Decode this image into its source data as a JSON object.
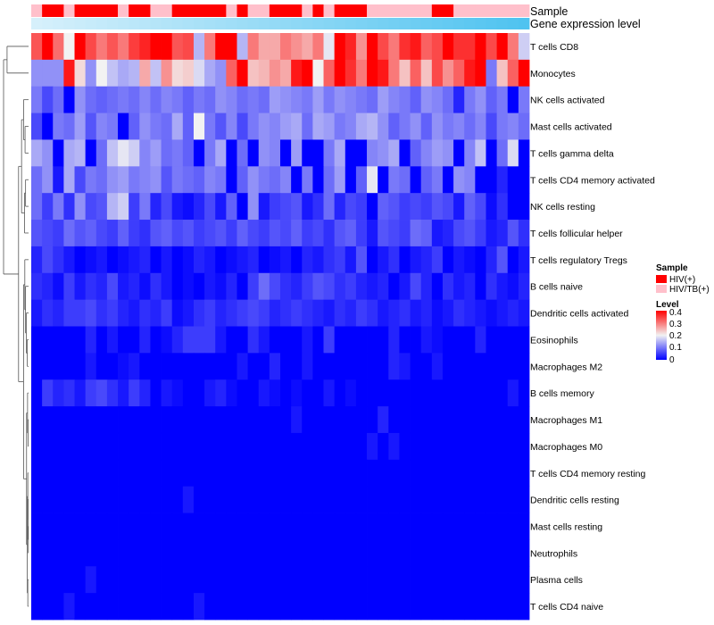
{
  "chart_data": {
    "type": "heatmap",
    "rows": [
      "T cells CD8",
      "Monocytes",
      "NK cells activated",
      "Mast cells activated",
      "T cells gamma delta",
      "T cells CD4 memory activated",
      "NK cells resting",
      "T cells follicular helper",
      "T cells regulatory  Tregs",
      "B cells naive",
      "Dendritic cells activated",
      "Eosinophils",
      "Macrophages M2",
      "B cells memory",
      "Macrophages M1",
      "Macrophages M0",
      "T cells CD4 memory resting",
      "Dendritic cells resting",
      "Mast cells resting",
      "Neutrophils",
      "Plasma cells",
      "T cells CD4 naive"
    ],
    "n_columns": 46,
    "sample_annotation": {
      "label": "Sample",
      "columns": [
        "HIV/TB(+)",
        "HIV(+)",
        "HIV(+)",
        "HIV/TB(+)",
        "HIV(+)",
        "HIV(+)",
        "HIV(+)",
        "HIV(+)",
        "HIV/TB(+)",
        "HIV(+)",
        "HIV(+)",
        "HIV/TB(+)",
        "HIV/TB(+)",
        "HIV(+)",
        "HIV(+)",
        "HIV(+)",
        "HIV(+)",
        "HIV(+)",
        "HIV/TB(+)",
        "HIV(+)",
        "HIV/TB(+)",
        "HIV/TB(+)",
        "HIV(+)",
        "HIV(+)",
        "HIV(+)",
        "HIV/TB(+)",
        "HIV(+)",
        "HIV/TB(+)",
        "HIV(+)",
        "HIV(+)",
        "HIV(+)",
        "HIV/TB(+)",
        "HIV/TB(+)",
        "HIV/TB(+)",
        "HIV/TB(+)",
        "HIV/TB(+)",
        "HIV/TB(+)",
        "HIV(+)",
        "HIV(+)",
        "HIV/TB(+)",
        "HIV/TB(+)",
        "HIV/TB(+)",
        "HIV/TB(+)",
        "HIV/TB(+)",
        "HIV/TB(+)",
        "HIV/TB(+)"
      ]
    },
    "gene_expression_annotation": {
      "label": "Gene expression level"
    },
    "values": [
      [
        0.33,
        0.4,
        0.31,
        0.2,
        0.4,
        0.34,
        0.3,
        0.33,
        0.3,
        0.35,
        0.37,
        0.4,
        0.4,
        0.33,
        0.34,
        0.15,
        0.3,
        0.4,
        0.4,
        0.15,
        0.3,
        0.26,
        0.26,
        0.3,
        0.28,
        0.26,
        0.3,
        0.19,
        0.4,
        0.37,
        0.28,
        0.4,
        0.34,
        0.3,
        0.36,
        0.38,
        0.32,
        0.34,
        0.4,
        0.36,
        0.36,
        0.4,
        0.34,
        0.4,
        0.3,
        0.17
      ],
      [
        0.12,
        0.12,
        0.12,
        0.38,
        0.22,
        0.12,
        0.2,
        0.16,
        0.14,
        0.15,
        0.26,
        0.16,
        0.28,
        0.22,
        0.23,
        0.18,
        0.14,
        0.12,
        0.32,
        0.4,
        0.24,
        0.25,
        0.28,
        0.26,
        0.38,
        0.4,
        0.2,
        0.32,
        0.4,
        0.36,
        0.3,
        0.4,
        0.38,
        0.3,
        0.24,
        0.32,
        0.24,
        0.34,
        0.28,
        0.32,
        0.38,
        0.4,
        0.1,
        0.24,
        0.32,
        0.4
      ],
      [
        0.1,
        0.06,
        0.09,
        0.0,
        0.12,
        0.09,
        0.08,
        0.09,
        0.1,
        0.09,
        0.11,
        0.09,
        0.11,
        0.1,
        0.08,
        0.1,
        0.09,
        0.12,
        0.11,
        0.09,
        0.1,
        0.09,
        0.13,
        0.12,
        0.11,
        0.1,
        0.13,
        0.1,
        0.12,
        0.11,
        0.1,
        0.09,
        0.13,
        0.11,
        0.1,
        0.08,
        0.12,
        0.11,
        0.09,
        0.03,
        0.1,
        0.12,
        0.08,
        0.1,
        0.0,
        0.1
      ],
      [
        0.06,
        0.0,
        0.1,
        0.09,
        0.13,
        0.07,
        0.11,
        0.1,
        0.0,
        0.08,
        0.12,
        0.1,
        0.09,
        0.14,
        0.08,
        0.2,
        0.1,
        0.07,
        0.11,
        0.06,
        0.1,
        0.12,
        0.11,
        0.13,
        0.14,
        0.09,
        0.14,
        0.13,
        0.1,
        0.11,
        0.14,
        0.15,
        0.12,
        0.08,
        0.1,
        0.12,
        0.08,
        0.12,
        0.1,
        0.11,
        0.09,
        0.11,
        0.06,
        0.1,
        0.11,
        0.09
      ],
      [
        0.14,
        0.12,
        0.0,
        0.14,
        0.15,
        0.0,
        0.09,
        0.16,
        0.19,
        0.17,
        0.11,
        0.13,
        0.09,
        0.1,
        0.08,
        0.0,
        0.1,
        0.14,
        0.0,
        0.09,
        0.0,
        0.12,
        0.11,
        0.0,
        0.13,
        0.0,
        0.0,
        0.1,
        0.14,
        0.0,
        0.0,
        0.11,
        0.12,
        0.14,
        0.0,
        0.08,
        0.11,
        0.13,
        0.12,
        0.0,
        0.11,
        0.16,
        0.0,
        0.09,
        0.18,
        0.0
      ],
      [
        0.09,
        0.12,
        0.02,
        0.14,
        0.06,
        0.1,
        0.09,
        0.12,
        0.13,
        0.1,
        0.11,
        0.12,
        0.07,
        0.1,
        0.09,
        0.08,
        0.11,
        0.1,
        0.0,
        0.08,
        0.12,
        0.1,
        0.09,
        0.11,
        0.0,
        0.1,
        0.0,
        0.09,
        0.13,
        0.0,
        0.08,
        0.19,
        0.0,
        0.1,
        0.09,
        0.0,
        0.08,
        0.1,
        0.0,
        0.12,
        0.11,
        0.0,
        0.0,
        0.03,
        0.0,
        0.0
      ],
      [
        0.09,
        0.05,
        0.1,
        0.04,
        0.12,
        0.06,
        0.07,
        0.15,
        0.17,
        0.05,
        0.1,
        0.03,
        0.06,
        0.02,
        0.01,
        0.03,
        0.06,
        0.02,
        0.08,
        0.0,
        0.12,
        0.02,
        0.05,
        0.06,
        0.07,
        0.02,
        0.04,
        0.09,
        0.03,
        0.06,
        0.05,
        0.0,
        0.08,
        0.07,
        0.05,
        0.06,
        0.05,
        0.07,
        0.06,
        0.02,
        0.08,
        0.06,
        0.01,
        0.04,
        0.0,
        0.0
      ],
      [
        0.07,
        0.06,
        0.05,
        0.09,
        0.07,
        0.08,
        0.06,
        0.05,
        0.08,
        0.05,
        0.04,
        0.07,
        0.08,
        0.06,
        0.07,
        0.05,
        0.06,
        0.07,
        0.05,
        0.08,
        0.06,
        0.05,
        0.07,
        0.06,
        0.08,
        0.05,
        0.06,
        0.04,
        0.07,
        0.08,
        0.05,
        0.02,
        0.07,
        0.06,
        0.05,
        0.09,
        0.08,
        0.02,
        0.03,
        0.06,
        0.07,
        0.05,
        0.02,
        0.03,
        0.07,
        0.04
      ],
      [
        0.03,
        0.06,
        0.04,
        0.02,
        0.0,
        0.01,
        0.02,
        0.0,
        0.01,
        0.02,
        0.03,
        0.0,
        0.02,
        0.0,
        0.01,
        0.03,
        0.02,
        0.0,
        0.01,
        0.02,
        0.03,
        0.0,
        0.01,
        0.02,
        0.0,
        0.03,
        0.02,
        0.04,
        0.05,
        0.02,
        0.07,
        0.0,
        0.02,
        0.04,
        0.0,
        0.02,
        0.03,
        0.05,
        0.0,
        0.02,
        0.01,
        0.0,
        0.03,
        0.07,
        0.0,
        0.02
      ],
      [
        0.04,
        0.03,
        0.01,
        0.05,
        0.02,
        0.04,
        0.03,
        0.06,
        0.02,
        0.03,
        0.01,
        0.04,
        0.02,
        0.0,
        0.01,
        0.0,
        0.02,
        0.01,
        0.03,
        0.0,
        0.05,
        0.09,
        0.06,
        0.04,
        0.03,
        0.05,
        0.07,
        0.06,
        0.04,
        0.05,
        0.03,
        0.02,
        0.03,
        0.0,
        0.02,
        0.06,
        0.03,
        0.0,
        0.04,
        0.02,
        0.03,
        0.0,
        0.04,
        0.02,
        0.01,
        0.03
      ],
      [
        0.02,
        0.04,
        0.03,
        0.05,
        0.05,
        0.06,
        0.04,
        0.05,
        0.03,
        0.02,
        0.04,
        0.03,
        0.05,
        0.01,
        0.02,
        0.04,
        0.05,
        0.03,
        0.04,
        0.05,
        0.06,
        0.05,
        0.03,
        0.04,
        0.05,
        0.04,
        0.03,
        0.02,
        0.04,
        0.03,
        0.05,
        0.04,
        0.02,
        0.03,
        0.04,
        0.02,
        0.03,
        0.01,
        0.02,
        0.04,
        0.03,
        0.02,
        0.01,
        0.02,
        0.03,
        0.02
      ],
      [
        0.0,
        0.0,
        0.0,
        0.0,
        0.0,
        0.03,
        0.0,
        0.02,
        0.0,
        0.0,
        0.03,
        0.0,
        0.01,
        0.03,
        0.05,
        0.05,
        0.05,
        0.02,
        0.0,
        0.0,
        0.04,
        0.02,
        0.0,
        0.0,
        0.0,
        0.02,
        0.0,
        0.05,
        0.0,
        0.0,
        0.0,
        0.0,
        0.0,
        0.03,
        0.0,
        0.0,
        0.02,
        0.01,
        0.0,
        0.0,
        0.0,
        0.03,
        0.0,
        0.0,
        0.0,
        0.0
      ],
      [
        0.0,
        0.0,
        0.0,
        0.0,
        0.0,
        0.02,
        0.0,
        0.0,
        0.01,
        0.02,
        0.0,
        0.0,
        0.0,
        0.0,
        0.0,
        0.0,
        0.0,
        0.0,
        0.0,
        0.02,
        0.0,
        0.0,
        0.03,
        0.0,
        0.0,
        0.02,
        0.0,
        0.0,
        0.0,
        0.0,
        0.0,
        0.0,
        0.0,
        0.03,
        0.02,
        0.0,
        0.0,
        0.02,
        0.0,
        0.0,
        0.0,
        0.0,
        0.0,
        0.0,
        0.0,
        0.0
      ],
      [
        0.0,
        0.05,
        0.03,
        0.04,
        0.02,
        0.05,
        0.06,
        0.04,
        0.02,
        0.05,
        0.03,
        0.0,
        0.02,
        0.01,
        0.0,
        0.0,
        0.02,
        0.03,
        0.01,
        0.0,
        0.0,
        0.02,
        0.01,
        0.0,
        0.01,
        0.0,
        0.0,
        0.02,
        0.0,
        0.01,
        0.0,
        0.0,
        0.0,
        0.0,
        0.0,
        0.0,
        0.0,
        0.0,
        0.0,
        0.0,
        0.0,
        0.0,
        0.0,
        0.0,
        0.02,
        0.0
      ],
      [
        0.0,
        0.0,
        0.0,
        0.0,
        0.0,
        0.0,
        0.0,
        0.0,
        0.0,
        0.0,
        0.0,
        0.0,
        0.0,
        0.0,
        0.0,
        0.0,
        0.0,
        0.0,
        0.0,
        0.0,
        0.0,
        0.0,
        0.0,
        0.0,
        0.02,
        0.0,
        0.0,
        0.0,
        0.0,
        0.0,
        0.0,
        0.0,
        0.03,
        0.0,
        0.0,
        0.0,
        0.0,
        0.0,
        0.0,
        0.0,
        0.0,
        0.0,
        0.0,
        0.0,
        0.0,
        0.0
      ],
      [
        0.0,
        0.0,
        0.0,
        0.0,
        0.0,
        0.0,
        0.0,
        0.0,
        0.0,
        0.0,
        0.0,
        0.0,
        0.0,
        0.0,
        0.0,
        0.0,
        0.0,
        0.0,
        0.0,
        0.0,
        0.0,
        0.0,
        0.0,
        0.0,
        0.0,
        0.0,
        0.0,
        0.0,
        0.0,
        0.0,
        0.0,
        0.02,
        0.0,
        0.02,
        0.0,
        0.0,
        0.0,
        0.0,
        0.0,
        0.0,
        0.0,
        0.0,
        0.0,
        0.0,
        0.0,
        0.0
      ],
      [
        0.0,
        0.0,
        0.0,
        0.0,
        0.0,
        0.0,
        0.0,
        0.0,
        0.0,
        0.0,
        0.0,
        0.0,
        0.0,
        0.0,
        0.0,
        0.0,
        0.0,
        0.0,
        0.0,
        0.0,
        0.0,
        0.0,
        0.0,
        0.0,
        0.0,
        0.0,
        0.0,
        0.0,
        0.0,
        0.0,
        0.0,
        0.0,
        0.0,
        0.0,
        0.0,
        0.0,
        0.0,
        0.0,
        0.0,
        0.0,
        0.0,
        0.0,
        0.0,
        0.0,
        0.0,
        0.0
      ],
      [
        0.0,
        0.0,
        0.0,
        0.0,
        0.0,
        0.0,
        0.0,
        0.0,
        0.0,
        0.0,
        0.0,
        0.0,
        0.0,
        0.0,
        0.02,
        0.0,
        0.0,
        0.0,
        0.0,
        0.0,
        0.0,
        0.0,
        0.0,
        0.0,
        0.0,
        0.0,
        0.0,
        0.0,
        0.0,
        0.0,
        0.0,
        0.0,
        0.0,
        0.0,
        0.0,
        0.0,
        0.0,
        0.0,
        0.0,
        0.0,
        0.0,
        0.0,
        0.0,
        0.0,
        0.0,
        0.0
      ],
      [
        0.0,
        0.0,
        0.0,
        0.0,
        0.0,
        0.0,
        0.0,
        0.0,
        0.0,
        0.0,
        0.0,
        0.0,
        0.0,
        0.0,
        0.0,
        0.0,
        0.0,
        0.0,
        0.0,
        0.0,
        0.0,
        0.0,
        0.0,
        0.0,
        0.0,
        0.0,
        0.0,
        0.0,
        0.0,
        0.0,
        0.0,
        0.0,
        0.0,
        0.0,
        0.0,
        0.0,
        0.0,
        0.0,
        0.0,
        0.0,
        0.0,
        0.0,
        0.0,
        0.0,
        0.0,
        0.0
      ],
      [
        0.0,
        0.0,
        0.0,
        0.0,
        0.0,
        0.0,
        0.0,
        0.0,
        0.0,
        0.0,
        0.0,
        0.0,
        0.0,
        0.0,
        0.0,
        0.0,
        0.0,
        0.0,
        0.0,
        0.0,
        0.0,
        0.0,
        0.0,
        0.0,
        0.0,
        0.0,
        0.0,
        0.0,
        0.0,
        0.0,
        0.0,
        0.0,
        0.0,
        0.0,
        0.0,
        0.0,
        0.0,
        0.0,
        0.0,
        0.0,
        0.0,
        0.0,
        0.0,
        0.0,
        0.0,
        0.0
      ],
      [
        0.0,
        0.0,
        0.0,
        0.0,
        0.0,
        0.02,
        0.0,
        0.0,
        0.0,
        0.0,
        0.0,
        0.0,
        0.0,
        0.0,
        0.0,
        0.0,
        0.0,
        0.0,
        0.0,
        0.0,
        0.0,
        0.0,
        0.0,
        0.0,
        0.0,
        0.0,
        0.0,
        0.0,
        0.0,
        0.0,
        0.0,
        0.0,
        0.0,
        0.0,
        0.0,
        0.0,
        0.0,
        0.0,
        0.0,
        0.0,
        0.0,
        0.0,
        0.0,
        0.0,
        0.0,
        0.0
      ],
      [
        0.0,
        0.0,
        0.0,
        0.02,
        0.0,
        0.0,
        0.0,
        0.0,
        0.0,
        0.0,
        0.0,
        0.0,
        0.0,
        0.0,
        0.0,
        0.02,
        0.0,
        0.0,
        0.0,
        0.0,
        0.0,
        0.0,
        0.0,
        0.0,
        0.0,
        0.0,
        0.0,
        0.0,
        0.0,
        0.0,
        0.0,
        0.0,
        0.0,
        0.0,
        0.0,
        0.0,
        0.0,
        0.0,
        0.0,
        0.0,
        0.0,
        0.0,
        0.0,
        0.0,
        0.0,
        0.0
      ]
    ],
    "color_scale": {
      "min": 0,
      "mid": 0.2,
      "max": 0.4,
      "low": "#0000FF",
      "midcolor": "#F2F2F2",
      "high": "#FF0000"
    },
    "legend": {
      "sample_title": "Sample",
      "sample_items": [
        {
          "label": "HIV(+)",
          "color": "#FF0000"
        },
        {
          "label": "HIV/TB(+)",
          "color": "#FFC0CB"
        }
      ],
      "level_title": "Level",
      "level_ticks": [
        "0.4",
        "0.3",
        "0.2",
        "0.1",
        "0"
      ],
      "placement": "right"
    },
    "annotation_colors": {
      "gene_expression_light": "#D6F0FB",
      "gene_expression_dark": "#4FC3F0"
    },
    "dendrogram": "rows"
  }
}
